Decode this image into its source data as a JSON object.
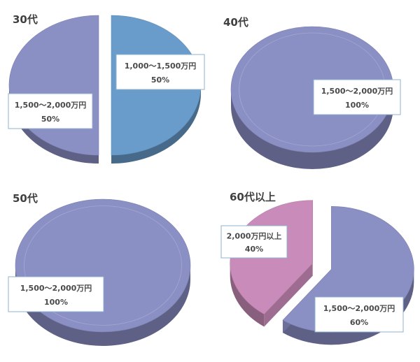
{
  "chart_data": [
    {
      "type": "pie",
      "title": "30代",
      "slices": [
        {
          "label": "1,000～1,500万円",
          "value": 50,
          "display": "50%",
          "color": "#6a9ccb",
          "exploded": true
        },
        {
          "label": "1,500～2,000万円",
          "value": 50,
          "display": "50%",
          "color": "#8a8fc4",
          "exploded": true
        }
      ]
    },
    {
      "type": "pie",
      "title": "40代",
      "slices": [
        {
          "label": "1,500～2,000万円",
          "value": 100,
          "display": "100%",
          "color": "#8a8fc4",
          "exploded": false
        }
      ]
    },
    {
      "type": "pie",
      "title": "50代",
      "slices": [
        {
          "label": "1,500～2,000万円",
          "value": 100,
          "display": "100%",
          "color": "#8a8fc4",
          "exploded": false
        }
      ]
    },
    {
      "type": "pie",
      "title": "60代以上",
      "slices": [
        {
          "label": "1,500～2,000万円",
          "value": 60,
          "display": "60%",
          "color": "#8a8fc4",
          "exploded": true
        },
        {
          "label": "2,000万円以上",
          "value": 40,
          "display": "40%",
          "color": "#c98bb9",
          "exploded": true
        }
      ]
    }
  ]
}
